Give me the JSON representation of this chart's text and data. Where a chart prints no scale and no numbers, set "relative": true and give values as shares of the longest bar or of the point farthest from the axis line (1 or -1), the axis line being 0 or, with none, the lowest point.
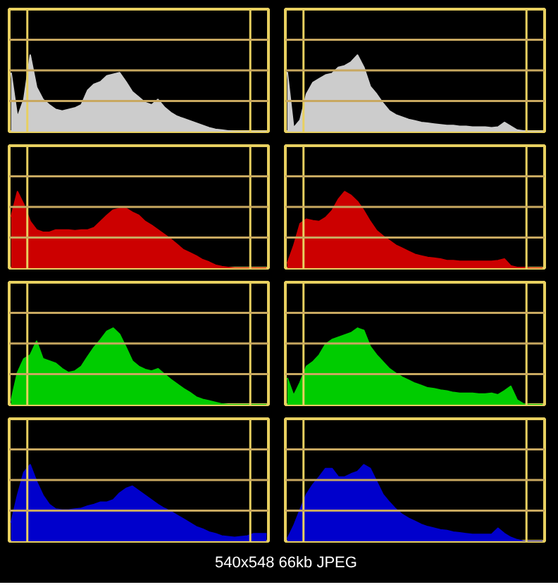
{
  "chart_data": [
    {
      "type": "area",
      "relative": true,
      "grid": true,
      "categories": [
        null,
        null,
        null,
        null,
        null,
        null,
        null,
        null,
        null,
        null,
        null,
        null,
        null,
        null,
        null,
        null,
        null,
        null,
        null,
        null,
        null,
        null,
        null,
        null,
        null,
        null,
        null,
        null,
        null,
        null,
        null,
        null,
        null,
        null,
        null,
        null,
        null,
        null,
        null,
        null,
        null
      ],
      "series": [
        {
          "color": "#cccccc",
          "values": [
            0.77,
            0.19,
            0.42,
            1,
            0.58,
            0.42,
            0.35,
            0.29,
            0.27,
            0.29,
            0.31,
            0.35,
            0.54,
            0.62,
            0.65,
            0.73,
            0.75,
            0.77,
            0.65,
            0.52,
            0.45,
            0.38,
            0.35,
            0.42,
            0.32,
            0.25,
            0.2,
            0.17,
            0.14,
            0.11,
            0.08,
            0.05,
            0.03,
            0.02,
            0.01,
            0,
            0,
            0,
            0,
            0,
            0
          ]
        }
      ],
      "ref_lines": [
        {
          "axis": "y",
          "value": 0.4
        },
        {
          "axis": "y",
          "value": 0.8
        },
        {
          "axis": "y",
          "value": 1.2
        }
      ]
    },
    {
      "type": "area",
      "relative": true,
      "grid": true,
      "categories": [
        null,
        null,
        null,
        null,
        null,
        null,
        null,
        null,
        null,
        null,
        null,
        null,
        null,
        null,
        null,
        null,
        null,
        null,
        null,
        null,
        null,
        null,
        null,
        null,
        null,
        null,
        null,
        null,
        null,
        null,
        null,
        null,
        null,
        null,
        null,
        null,
        null,
        null,
        null,
        null,
        null
      ],
      "series": [
        {
          "color": "#cccccc",
          "values": [
            0.78,
            0.05,
            0.15,
            0.49,
            0.64,
            0.69,
            0.74,
            0.76,
            0.84,
            0.86,
            0.91,
            1,
            0.84,
            0.59,
            0.49,
            0.37,
            0.27,
            0.22,
            0.19,
            0.16,
            0.14,
            0.12,
            0.11,
            0.1,
            0.09,
            0.08,
            0.08,
            0.07,
            0.07,
            0.06,
            0.06,
            0.06,
            0.05,
            0.06,
            0.12,
            0.07,
            0.02,
            0.01,
            0,
            0,
            0
          ]
        }
      ],
      "ref_lines": [
        {
          "axis": "y",
          "value": 0.4
        },
        {
          "axis": "y",
          "value": 0.8
        },
        {
          "axis": "y",
          "value": 1.2
        }
      ]
    },
    {
      "type": "area",
      "relative": true,
      "grid": true,
      "categories": [
        null,
        null,
        null,
        null,
        null,
        null,
        null,
        null,
        null,
        null,
        null,
        null,
        null,
        null,
        null,
        null,
        null,
        null,
        null,
        null,
        null,
        null,
        null,
        null,
        null,
        null,
        null,
        null,
        null,
        null,
        null,
        null,
        null,
        null,
        null,
        null,
        null,
        null,
        null,
        null,
        null
      ],
      "series": [
        {
          "color": "#cc0000",
          "values": [
            0.67,
            1,
            0.83,
            0.61,
            0.5,
            0.47,
            0.47,
            0.5,
            0.5,
            0.5,
            0.49,
            0.5,
            0.5,
            0.53,
            0.61,
            0.69,
            0.76,
            0.78,
            0.78,
            0.73,
            0.69,
            0.61,
            0.56,
            0.5,
            0.44,
            0.38,
            0.31,
            0.24,
            0.2,
            0.16,
            0.11,
            0.08,
            0.04,
            0.02,
            0.01,
            0,
            0,
            0,
            0,
            0,
            0
          ]
        }
      ],
      "ref_lines": [
        {
          "axis": "y",
          "value": 0.4
        },
        {
          "axis": "y",
          "value": 0.8
        },
        {
          "axis": "y",
          "value": 1.2
        }
      ]
    },
    {
      "type": "area",
      "relative": true,
      "grid": true,
      "categories": [
        null,
        null,
        null,
        null,
        null,
        null,
        null,
        null,
        null,
        null,
        null,
        null,
        null,
        null,
        null,
        null,
        null,
        null,
        null,
        null,
        null,
        null,
        null,
        null,
        null,
        null,
        null,
        null,
        null,
        null,
        null,
        null,
        null,
        null,
        null,
        null,
        null,
        null,
        null,
        null,
        null
      ],
      "series": [
        {
          "color": "#cc0000",
          "values": [
            0.06,
            0.29,
            0.58,
            0.64,
            0.62,
            0.61,
            0.66,
            0.75,
            0.9,
            1,
            0.95,
            0.87,
            0.75,
            0.61,
            0.49,
            0.42,
            0.36,
            0.3,
            0.26,
            0.22,
            0.18,
            0.16,
            0.14,
            0.13,
            0.12,
            0.1,
            0.1,
            0.09,
            0.09,
            0.09,
            0.09,
            0.09,
            0.09,
            0.1,
            0.12,
            0.03,
            0.01,
            0.01,
            0,
            0,
            0
          ]
        }
      ],
      "ref_lines": [
        {
          "axis": "y",
          "value": 0.4
        },
        {
          "axis": "y",
          "value": 0.8
        },
        {
          "axis": "y",
          "value": 1.2
        }
      ]
    },
    {
      "type": "area",
      "relative": true,
      "grid": true,
      "categories": [
        null,
        null,
        null,
        null,
        null,
        null,
        null,
        null,
        null,
        null,
        null,
        null,
        null,
        null,
        null,
        null,
        null,
        null,
        null,
        null,
        null,
        null,
        null,
        null,
        null,
        null,
        null,
        null,
        null,
        null,
        null,
        null,
        null,
        null,
        null,
        null,
        null,
        null,
        null,
        null,
        null
      ],
      "series": [
        {
          "color": "#00cc00",
          "values": [
            0.05,
            0.42,
            0.6,
            0.65,
            0.83,
            0.6,
            0.57,
            0.54,
            0.47,
            0.42,
            0.44,
            0.5,
            0.63,
            0.75,
            0.85,
            0.96,
            1,
            0.92,
            0.75,
            0.57,
            0.5,
            0.46,
            0.44,
            0.47,
            0.4,
            0.33,
            0.27,
            0.21,
            0.16,
            0.1,
            0.07,
            0.05,
            0.03,
            0.01,
            0,
            0,
            0,
            0,
            0,
            0,
            0
          ]
        }
      ],
      "ref_lines": [
        {
          "axis": "y",
          "value": 0.4
        },
        {
          "axis": "y",
          "value": 0.8
        },
        {
          "axis": "y",
          "value": 1.2
        }
      ]
    },
    {
      "type": "area",
      "relative": true,
      "grid": true,
      "categories": [
        null,
        null,
        null,
        null,
        null,
        null,
        null,
        null,
        null,
        null,
        null,
        null,
        null,
        null,
        null,
        null,
        null,
        null,
        null,
        null,
        null,
        null,
        null,
        null,
        null,
        null,
        null,
        null,
        null,
        null,
        null,
        null,
        null,
        null,
        null,
        null,
        null,
        null,
        null,
        null,
        null
      ],
      "series": [
        {
          "color": "#00cc00",
          "values": [
            0.35,
            0.12,
            0.29,
            0.5,
            0.56,
            0.65,
            0.79,
            0.85,
            0.88,
            0.91,
            0.94,
            1,
            0.97,
            0.76,
            0.65,
            0.56,
            0.47,
            0.41,
            0.36,
            0.32,
            0.28,
            0.25,
            0.22,
            0.21,
            0.19,
            0.18,
            0.16,
            0.15,
            0.15,
            0.15,
            0.14,
            0.14,
            0.15,
            0.13,
            0.18,
            0.24,
            0.06,
            0.01,
            0,
            0,
            0
          ]
        }
      ],
      "ref_lines": [
        {
          "axis": "y",
          "value": 0.4
        },
        {
          "axis": "y",
          "value": 0.8
        },
        {
          "axis": "y",
          "value": 1.2
        }
      ]
    },
    {
      "type": "area",
      "relative": true,
      "grid": true,
      "categories": [
        null,
        null,
        null,
        null,
        null,
        null,
        null,
        null,
        null,
        null,
        null,
        null,
        null,
        null,
        null,
        null,
        null,
        null,
        null,
        null,
        null,
        null,
        null,
        null,
        null,
        null,
        null,
        null,
        null,
        null,
        null,
        null,
        null,
        null,
        null,
        null,
        null,
        null,
        null,
        null,
        null
      ],
      "series": [
        {
          "color": "#0000cc",
          "values": [
            0.24,
            0.6,
            0.9,
            1,
            0.78,
            0.6,
            0.48,
            0.42,
            0.41,
            0.41,
            0.42,
            0.43,
            0.46,
            0.48,
            0.51,
            0.51,
            0.54,
            0.63,
            0.69,
            0.72,
            0.66,
            0.6,
            0.54,
            0.48,
            0.43,
            0.39,
            0.34,
            0.29,
            0.24,
            0.19,
            0.16,
            0.12,
            0.1,
            0.07,
            0.06,
            0.05,
            0.06,
            0.07,
            0.1,
            0.1,
            0.1
          ]
        }
      ],
      "ref_lines": [
        {
          "axis": "y",
          "value": 0.4
        },
        {
          "axis": "y",
          "value": 0.8
        },
        {
          "axis": "y",
          "value": 1.2
        }
      ]
    },
    {
      "type": "area",
      "relative": true,
      "grid": true,
      "categories": [
        null,
        null,
        null,
        null,
        null,
        null,
        null,
        null,
        null,
        null,
        null,
        null,
        null,
        null,
        null,
        null,
        null,
        null,
        null,
        null,
        null,
        null,
        null,
        null,
        null,
        null,
        null,
        null,
        null,
        null,
        null,
        null,
        null,
        null,
        null,
        null,
        null,
        null,
        null,
        null,
        null
      ],
      "series": [
        {
          "color": "#0000cc",
          "values": [
            0.03,
            0.2,
            0.41,
            0.61,
            0.74,
            0.84,
            0.95,
            0.95,
            0.84,
            0.84,
            0.88,
            0.91,
            1,
            0.95,
            0.78,
            0.61,
            0.51,
            0.42,
            0.35,
            0.3,
            0.26,
            0.22,
            0.19,
            0.17,
            0.15,
            0.14,
            0.12,
            0.11,
            0.1,
            0.09,
            0.09,
            0.09,
            0.09,
            0.17,
            0.1,
            0.05,
            0.02,
            0,
            0,
            0,
            0
          ]
        }
      ],
      "ref_lines": [
        {
          "axis": "y",
          "value": 0.4
        },
        {
          "axis": "y",
          "value": 0.8
        },
        {
          "axis": "y",
          "value": 1.2
        }
      ],
      "annotations": [
        "540x548 66kb JPEG"
      ]
    }
  ]
}
